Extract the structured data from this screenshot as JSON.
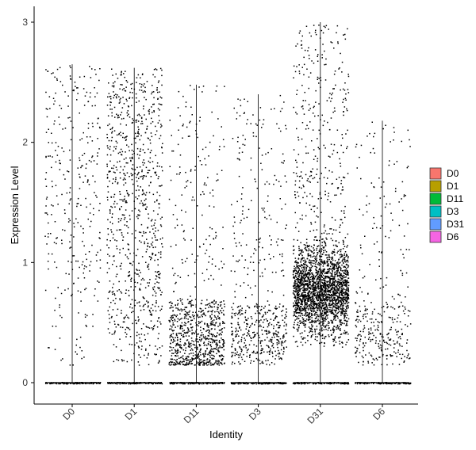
{
  "chart_data": {
    "type": "violin-jitter",
    "xlabel": "Identity",
    "ylabel": "Expression Level",
    "ylim": [
      0,
      3
    ],
    "yticks": [
      0,
      1,
      2,
      3
    ],
    "categories": [
      "D0",
      "D1",
      "D11",
      "D3",
      "D31",
      "D6"
    ],
    "legend": {
      "placement": "right",
      "entries": [
        {
          "label": "D0",
          "color": "#F8766D"
        },
        {
          "label": "D1",
          "color": "#B79F00"
        },
        {
          "label": "D11",
          "color": "#00BA38"
        },
        {
          "label": "D3",
          "color": "#00BFC4"
        },
        {
          "label": "D31",
          "color": "#619CFF"
        },
        {
          "label": "D6",
          "color": "#F564E3"
        }
      ]
    },
    "groups": [
      {
        "name": "D0",
        "max": 2.65,
        "points": 320,
        "zero_fraction": "high",
        "profile": "uniform"
      },
      {
        "name": "D1",
        "max": 2.62,
        "points": 900,
        "zero_fraction": "high",
        "profile": "uniform"
      },
      {
        "name": "D11",
        "max": 2.48,
        "points": 900,
        "zero_fraction": "high",
        "profile": "low-peak"
      },
      {
        "name": "D3",
        "max": 2.4,
        "points": 560,
        "zero_fraction": "high",
        "profile": "low-spread"
      },
      {
        "name": "D31",
        "max": 3.0,
        "points": 2600,
        "zero_fraction": "high",
        "profile": "mid-peak"
      },
      {
        "name": "D6",
        "max": 2.18,
        "points": 360,
        "zero_fraction": "high",
        "profile": "low-spread"
      }
    ]
  }
}
